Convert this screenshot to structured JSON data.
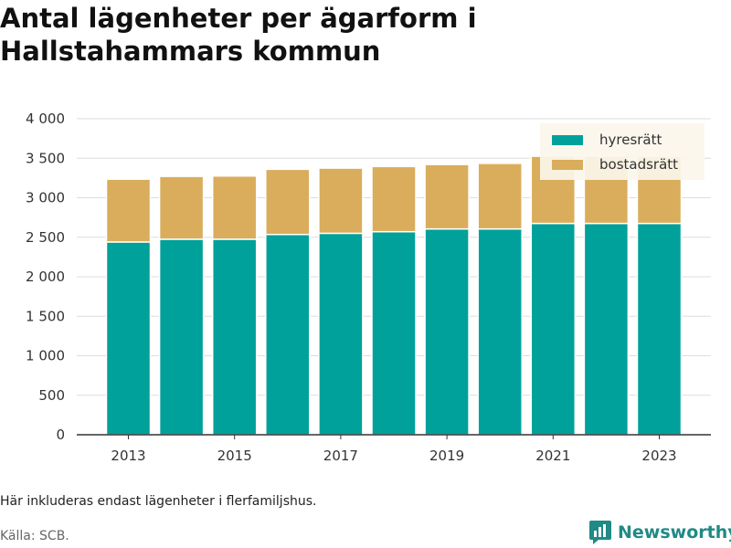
{
  "title": "Antal lägenheter per ägarform i Hallstahammars kommun",
  "note": "Här inkluderas endast lägenheter i flerfamiljshus.",
  "source": "Källa: SCB.",
  "brand": "Newsworthy",
  "colors": {
    "hyresratt": "#00a19a",
    "bostadsratt": "#d9ad5b",
    "grid": "#dddddd",
    "brand": "#1f8a86"
  },
  "chart_data": {
    "type": "bar",
    "stacked": true,
    "categories": [
      "2013",
      "2014",
      "2015",
      "2016",
      "2017",
      "2018",
      "2019",
      "2020",
      "2021",
      "2022",
      "2023"
    ],
    "x_tick_labels": [
      "2013",
      "2015",
      "2017",
      "2019",
      "2021",
      "2023"
    ],
    "y_tick_labels": [
      "0",
      "500",
      "1 000",
      "1 500",
      "2 000",
      "2 500",
      "3 000",
      "3 500",
      "4 000"
    ],
    "ylim": [
      0,
      4000
    ],
    "grid": true,
    "legend_position": "top-right",
    "series": [
      {
        "name": "hyresrätt",
        "color": "#00a19a",
        "values": [
          2440,
          2475,
          2475,
          2535,
          2550,
          2570,
          2605,
          2605,
          2675,
          2675,
          2675
        ]
      },
      {
        "name": "bostadsrätt",
        "color": "#d9ad5b",
        "values": [
          795,
          795,
          800,
          825,
          825,
          825,
          815,
          830,
          850,
          850,
          850
        ]
      }
    ]
  }
}
